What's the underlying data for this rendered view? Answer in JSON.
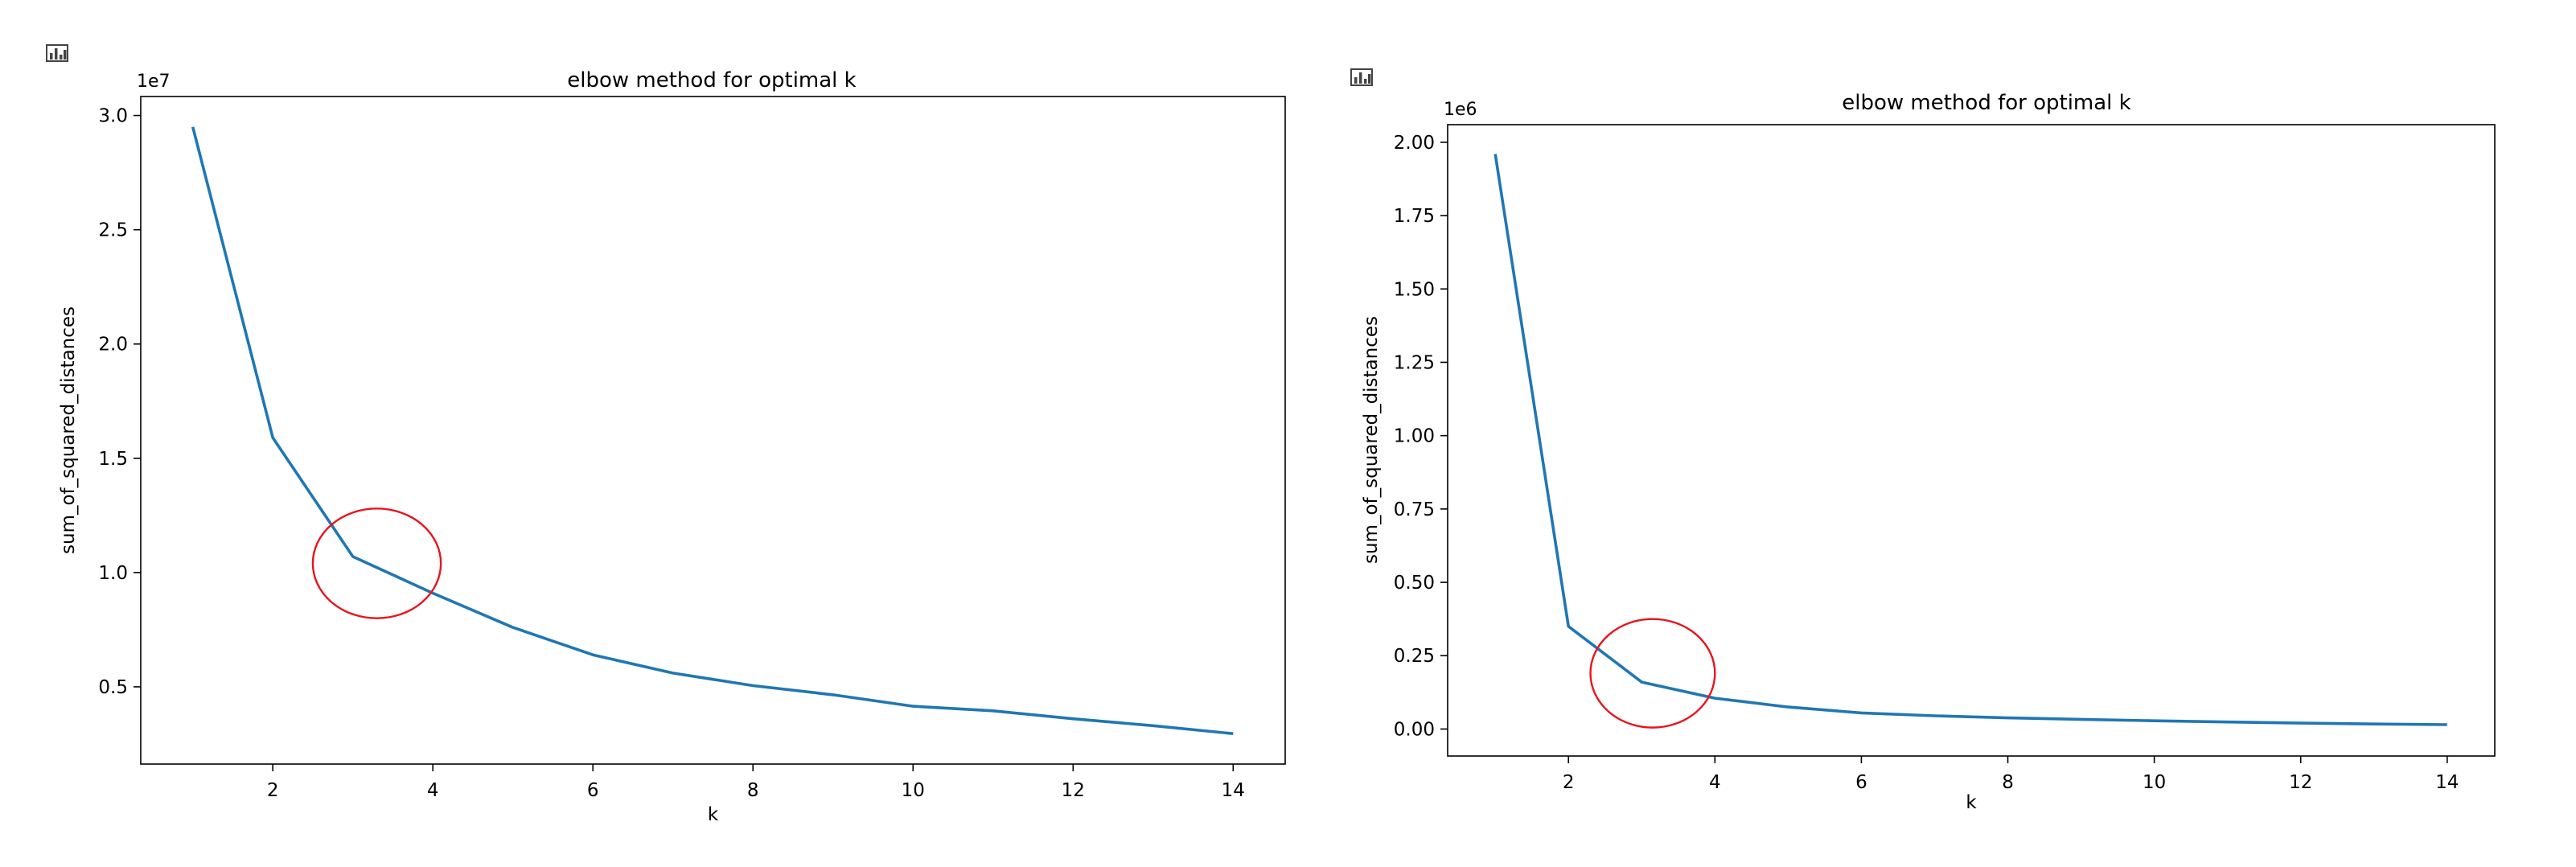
{
  "charts": [
    {
      "toolbar_icon": "bar-chart-icon",
      "chart_data": {
        "type": "line",
        "title": "elbow method for optimal k",
        "xlabel": "k",
        "ylabel": "sum_of_squared_distances",
        "y_offset_text": "1e7",
        "x": [
          1,
          2,
          3,
          4,
          5,
          6,
          7,
          8,
          9,
          10,
          11,
          12,
          13,
          14
        ],
        "series": [
          {
            "values": [
              2.95,
              1.59,
              1.07,
              0.91,
              0.76,
              0.64,
              0.56,
              0.505,
              0.465,
              0.415,
              0.395,
              0.36,
              0.33,
              0.295
            ],
            "color": "#1f77b4"
          }
        ],
        "xlim": [
          0.35,
          14.65
        ],
        "ylim": [
          0.162,
          3.083
        ],
        "xticks": [
          2,
          4,
          6,
          8,
          10,
          12,
          14
        ],
        "xtick_labels": [
          "2",
          "4",
          "6",
          "8",
          "10",
          "12",
          "14"
        ],
        "yticks": [
          0.5,
          1.0,
          1.5,
          2.0,
          2.5,
          3.0
        ],
        "ytick_labels": [
          "0.5",
          "1.0",
          "1.5",
          "2.0",
          "2.5",
          "3.0"
        ],
        "annotation": {
          "type": "ellipse",
          "cx": 3.3,
          "cy": 1.04,
          "rx": 0.8,
          "ry": 0.24,
          "color": "#e8141c"
        },
        "grid": false
      }
    },
    {
      "toolbar_icon": "bar-chart-icon",
      "chart_data": {
        "type": "line",
        "title": "elbow method for optimal k",
        "xlabel": "k",
        "ylabel": "sum_of_squared_distances",
        "y_offset_text": "1e6",
        "x": [
          1,
          2,
          3,
          4,
          5,
          6,
          7,
          8,
          9,
          10,
          11,
          12,
          13,
          14
        ],
        "series": [
          {
            "values": [
              1.96,
              0.35,
              0.16,
              0.105,
              0.075,
              0.055,
              0.045,
              0.038,
              0.033,
              0.028,
              0.024,
              0.02,
              0.017,
              0.015
            ],
            "color": "#1f77b4"
          }
        ],
        "xlim": [
          0.35,
          14.65
        ],
        "ylim": [
          -0.092,
          2.06
        ],
        "xticks": [
          2,
          4,
          6,
          8,
          10,
          12,
          14
        ],
        "xtick_labels": [
          "2",
          "4",
          "6",
          "8",
          "10",
          "12",
          "14"
        ],
        "yticks": [
          0.0,
          0.25,
          0.5,
          0.75,
          1.0,
          1.25,
          1.5,
          1.75,
          2.0
        ],
        "ytick_labels": [
          "0.00",
          "0.25",
          "0.50",
          "0.75",
          "1.00",
          "1.25",
          "1.50",
          "1.75",
          "2.00"
        ],
        "annotation": {
          "type": "ellipse",
          "cx": 3.15,
          "cy": 0.19,
          "rx": 0.85,
          "ry": 0.185,
          "color": "#e8141c"
        },
        "grid": false
      }
    }
  ]
}
